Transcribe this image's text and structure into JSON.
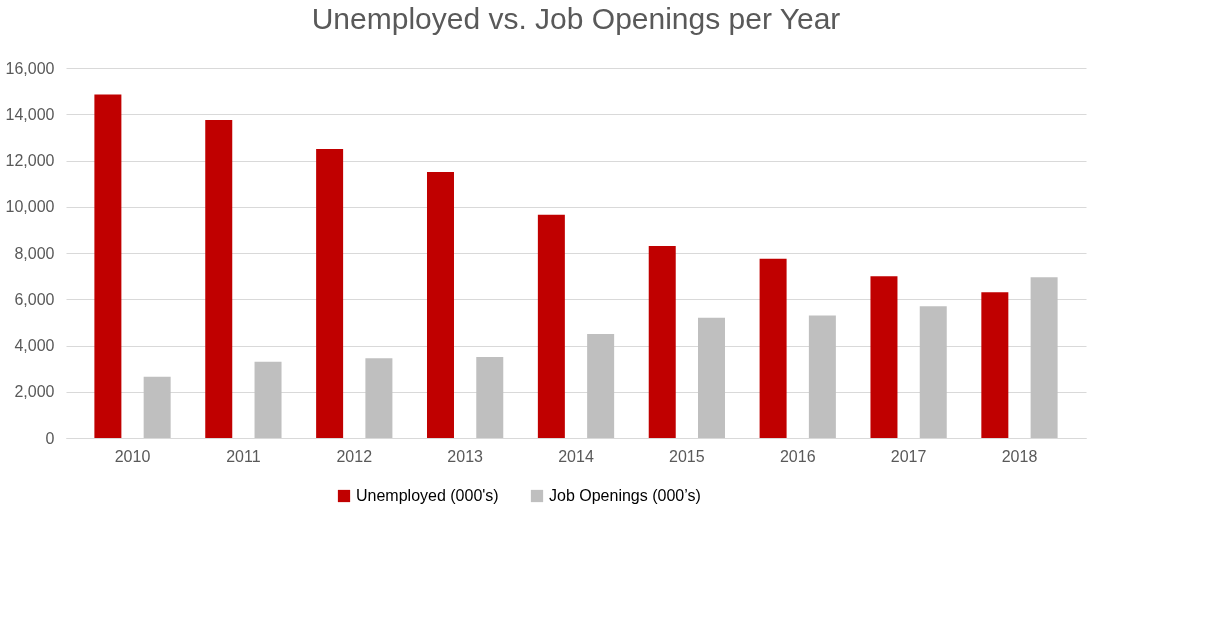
{
  "chart_data": {
    "type": "bar",
    "title": "Unemployed vs. Job Openings per Year",
    "categories": [
      "2010",
      "2011",
      "2012",
      "2013",
      "2014",
      "2015",
      "2016",
      "2017",
      "2018"
    ],
    "series": [
      {
        "name": "Unemployed (000's)",
        "color": "#c00000",
        "values": [
          14850,
          13750,
          12500,
          11500,
          9650,
          8300,
          7750,
          7000,
          6300
        ]
      },
      {
        "name": "Job Openings (000’s)",
        "color": "#bfbfbf",
        "values": [
          2650,
          3300,
          3450,
          3500,
          4500,
          5200,
          5300,
          5700,
          6950
        ]
      }
    ],
    "ylim": [
      0,
      16000
    ],
    "yticks": [
      0,
      {
        "value": 2000,
        "label": "2,000"
      },
      {
        "value": 4000,
        "label": "4,000"
      },
      {
        "value": 6000,
        "label": "6,000"
      },
      {
        "value": 8000,
        "label": "8,000"
      },
      {
        "value": 10000,
        "label": "10,000"
      },
      {
        "value": 12000,
        "label": "12,000"
      },
      {
        "value": 14000,
        "label": "14,000"
      },
      {
        "value": 16000,
        "label": "16,000"
      }
    ],
    "grid": "y",
    "legend": "bottom"
  }
}
